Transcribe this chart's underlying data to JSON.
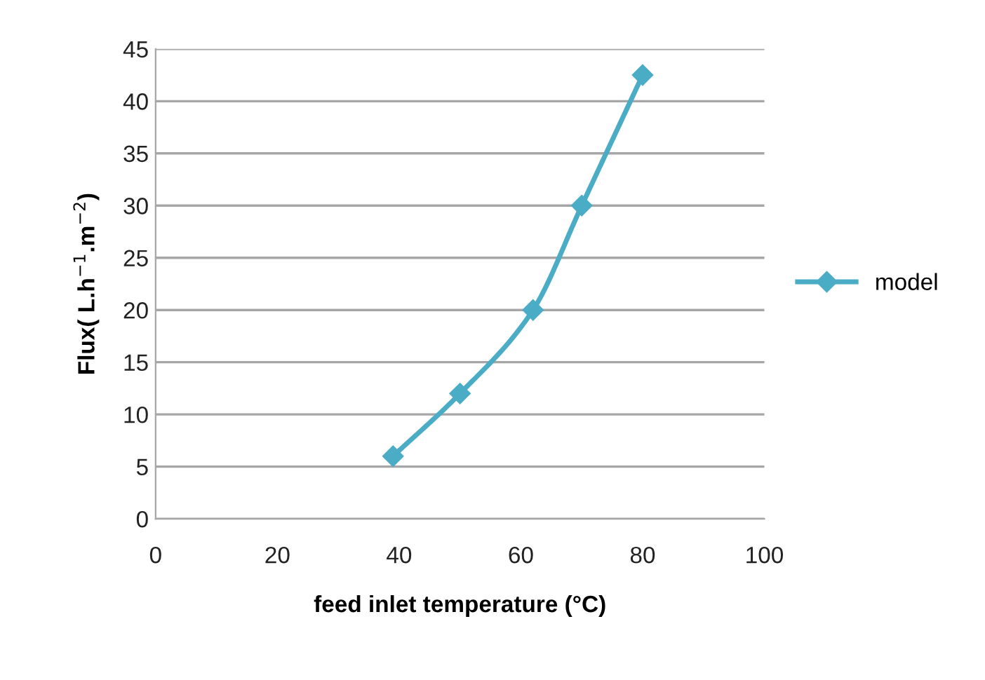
{
  "chart_data": {
    "type": "line",
    "xlabel": "feed inlet temperature (°C)",
    "ylabel": "Flux( L.h$^{−1}$.m$^{−2}$)",
    "series": [
      {
        "name": "model",
        "color": "#4bacc6",
        "x": [
          39,
          50,
          62,
          70,
          80
        ],
        "values": [
          6,
          12,
          20,
          30,
          42.5
        ]
      }
    ],
    "xlim": [
      0,
      100
    ],
    "xticks": [
      0,
      20,
      40,
      60,
      80,
      100
    ],
    "ylim": [
      0,
      45
    ],
    "yticks": [
      0,
      5,
      10,
      15,
      20,
      25,
      30,
      35,
      40,
      45
    ],
    "grid": "y",
    "legend": "right",
    "marker": "diamond",
    "line_style": "solid"
  }
}
